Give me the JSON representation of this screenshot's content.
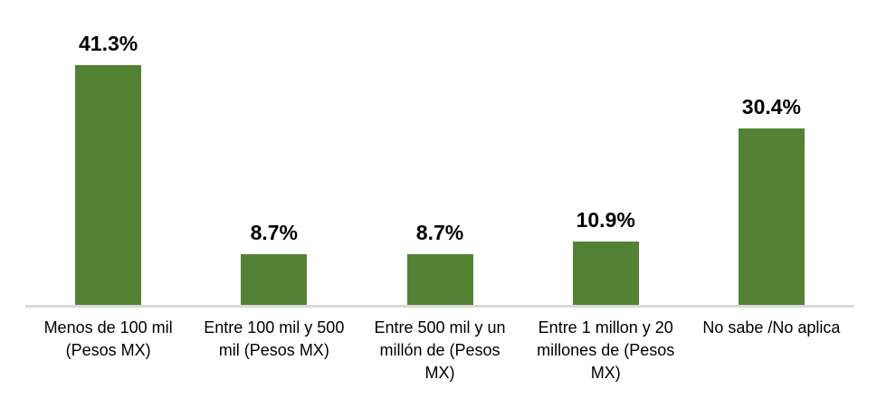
{
  "chart_data": {
    "type": "bar",
    "title": "",
    "xlabel": "",
    "ylabel": "",
    "categories": [
      "Menos de 100 mil (Pesos MX)",
      "Entre 100 mil y 500 mil (Pesos MX)",
      "Entre 500 mil y un millón de (Pesos MX)",
      "Entre 1 millon y 20 millones de (Pesos MX)",
      "No sabe /No aplica"
    ],
    "category_labels_as_wrapped": [
      "Menos de 100 mil\n(Pesos MX)",
      "Entre 100 mil y 500\nmil (Pesos MX)",
      "Entre 500 mil y un\nmillón de (Pesos\nMX)",
      "Entre 1 millon y 20\nmillones de (Pesos\nMX)",
      "No sabe /No aplica"
    ],
    "values": [
      41.3,
      8.7,
      8.7,
      10.9,
      30.4
    ],
    "data_labels": [
      "41.3%",
      "8.7%",
      "8.7%",
      "10.9%",
      "30.4%"
    ],
    "ylim": [
      0,
      45
    ],
    "grid": false,
    "legend": false,
    "colors": {
      "bar": "#548235",
      "axis_line": "#d9d9d9",
      "data_label": "#000000",
      "category_label": "#000000",
      "background": "#ffffff"
    }
  }
}
